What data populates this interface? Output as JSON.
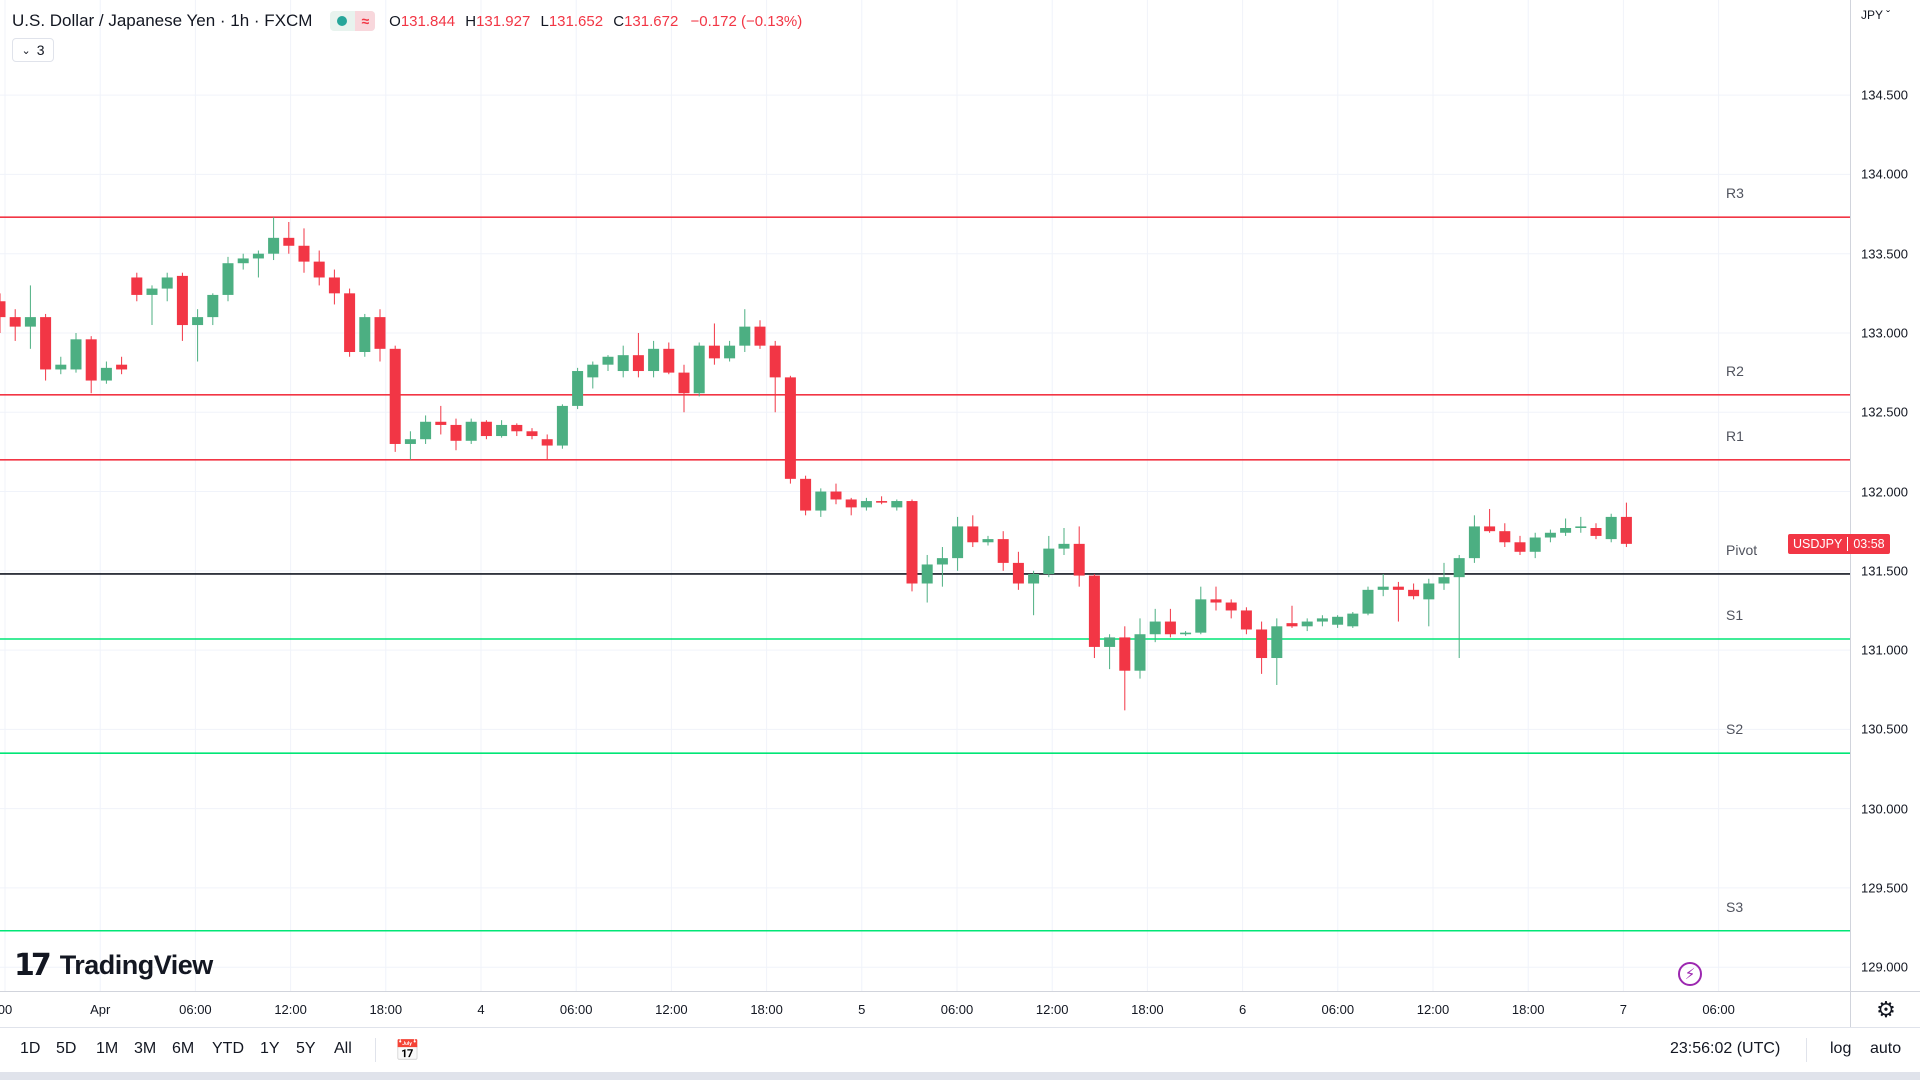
{
  "header": {
    "title": "U.S. Dollar / Japanese Yen · 1h · FXCM",
    "status_icon": "market-open-dot",
    "wave_icon": "≈",
    "ohlc": {
      "o_key": "O",
      "o": "131.844",
      "h_key": "H",
      "h": "131.927",
      "l_key": "L",
      "l": "131.652",
      "c_key": "C",
      "c": "131.672",
      "change": "−0.172 (−0.13%)"
    },
    "indicator_count": "3"
  },
  "price_axis": {
    "currency": "JPY",
    "labels": [
      "134.500",
      "134.000",
      "133.500",
      "133.000",
      "132.500",
      "132.000",
      "131.500",
      "131.000",
      "130.500",
      "130.000",
      "129.500",
      "129.000"
    ],
    "current_symbol": "USDJPY",
    "current_countdown": "03:58",
    "current_price": 131.672
  },
  "levels": [
    {
      "name": "R3",
      "value": 133.73,
      "color": "#f23645"
    },
    {
      "name": "R2",
      "value": 132.61,
      "color": "#f23645"
    },
    {
      "name": "R1",
      "value": 132.2,
      "color": "#f23645"
    },
    {
      "name": "Pivot",
      "value": 131.48,
      "color": "#131722"
    },
    {
      "name": "S1",
      "value": 131.07,
      "color": "#00e676"
    },
    {
      "name": "S2",
      "value": 130.35,
      "color": "#00e676"
    },
    {
      "name": "S3",
      "value": 129.23,
      "color": "#00e676"
    }
  ],
  "time_axis": {
    "labels": [
      "00",
      "Apr",
      "06:00",
      "12:00",
      "18:00",
      "4",
      "06:00",
      "12:00",
      "18:00",
      "5",
      "06:00",
      "12:00",
      "18:00",
      "6",
      "06:00",
      "12:00",
      "18:00",
      "7",
      "06:00"
    ]
  },
  "colors": {
    "up": "#26a69a",
    "up_candle": "#4caf82",
    "down": "#f23645",
    "grid": "#f0f3fa"
  },
  "bottom_bar": {
    "ranges": [
      "1D",
      "5D",
      "1M",
      "3M",
      "6M",
      "YTD",
      "1Y",
      "5Y",
      "All"
    ],
    "clock": "23:56:02 (UTC)",
    "log_label": "log",
    "auto_label": "auto"
  },
  "branding": {
    "logo_text": "TradingView"
  },
  "chart_data": {
    "type": "candlestick",
    "title": "U.S. Dollar / Japanese Yen · 1h · FXCM",
    "interval": "1h",
    "ylim": [
      128.85,
      135.1
    ],
    "candles": [
      {
        "o": 133.2,
        "h": 133.25,
        "l": 133.0,
        "c": 133.1
      },
      {
        "o": 133.1,
        "h": 133.15,
        "l": 132.95,
        "c": 133.04
      },
      {
        "o": 133.04,
        "h": 133.3,
        "l": 132.9,
        "c": 133.1
      },
      {
        "o": 133.1,
        "h": 133.12,
        "l": 132.7,
        "c": 132.77
      },
      {
        "o": 132.77,
        "h": 132.85,
        "l": 132.74,
        "c": 132.8
      },
      {
        "o": 132.77,
        "h": 133.0,
        "l": 132.75,
        "c": 132.96
      },
      {
        "o": 132.96,
        "h": 132.98,
        "l": 132.62,
        "c": 132.7
      },
      {
        "o": 132.7,
        "h": 132.82,
        "l": 132.68,
        "c": 132.78
      },
      {
        "o": 132.8,
        "h": 132.85,
        "l": 132.74,
        "c": 132.77
      },
      {
        "o": 133.35,
        "h": 133.38,
        "l": 133.2,
        "c": 133.24
      },
      {
        "o": 133.24,
        "h": 133.3,
        "l": 133.05,
        "c": 133.28
      },
      {
        "o": 133.28,
        "h": 133.38,
        "l": 133.2,
        "c": 133.35
      },
      {
        "o": 133.36,
        "h": 133.38,
        "l": 132.95,
        "c": 133.05
      },
      {
        "o": 133.05,
        "h": 133.15,
        "l": 132.82,
        "c": 133.1
      },
      {
        "o": 133.1,
        "h": 133.25,
        "l": 133.05,
        "c": 133.24
      },
      {
        "o": 133.24,
        "h": 133.48,
        "l": 133.2,
        "c": 133.44
      },
      {
        "o": 133.44,
        "h": 133.5,
        "l": 133.4,
        "c": 133.47
      },
      {
        "o": 133.47,
        "h": 133.52,
        "l": 133.35,
        "c": 133.5
      },
      {
        "o": 133.5,
        "h": 133.73,
        "l": 133.46,
        "c": 133.6
      },
      {
        "o": 133.6,
        "h": 133.7,
        "l": 133.5,
        "c": 133.55
      },
      {
        "o": 133.55,
        "h": 133.66,
        "l": 133.38,
        "c": 133.45
      },
      {
        "o": 133.45,
        "h": 133.52,
        "l": 133.3,
        "c": 133.35
      },
      {
        "o": 133.35,
        "h": 133.4,
        "l": 133.18,
        "c": 133.25
      },
      {
        "o": 133.25,
        "h": 133.28,
        "l": 132.85,
        "c": 132.88
      },
      {
        "o": 132.88,
        "h": 133.12,
        "l": 132.85,
        "c": 133.1
      },
      {
        "o": 133.1,
        "h": 133.15,
        "l": 132.82,
        "c": 132.9
      },
      {
        "o": 132.9,
        "h": 132.92,
        "l": 132.25,
        "c": 132.3
      },
      {
        "o": 132.3,
        "h": 132.38,
        "l": 132.2,
        "c": 132.33
      },
      {
        "o": 132.33,
        "h": 132.48,
        "l": 132.3,
        "c": 132.44
      },
      {
        "o": 132.44,
        "h": 132.54,
        "l": 132.36,
        "c": 132.42
      },
      {
        "o": 132.42,
        "h": 132.46,
        "l": 132.26,
        "c": 132.32
      },
      {
        "o": 132.32,
        "h": 132.46,
        "l": 132.3,
        "c": 132.44
      },
      {
        "o": 132.44,
        "h": 132.45,
        "l": 132.33,
        "c": 132.35
      },
      {
        "o": 132.35,
        "h": 132.45,
        "l": 132.34,
        "c": 132.42
      },
      {
        "o": 132.42,
        "h": 132.43,
        "l": 132.35,
        "c": 132.38
      },
      {
        "o": 132.38,
        "h": 132.4,
        "l": 132.33,
        "c": 132.35
      },
      {
        "o": 132.33,
        "h": 132.36,
        "l": 132.2,
        "c": 132.29
      },
      {
        "o": 132.29,
        "h": 132.55,
        "l": 132.27,
        "c": 132.54
      },
      {
        "o": 132.54,
        "h": 132.78,
        "l": 132.52,
        "c": 132.76
      },
      {
        "o": 132.72,
        "h": 132.82,
        "l": 132.65,
        "c": 132.8
      },
      {
        "o": 132.8,
        "h": 132.86,
        "l": 132.76,
        "c": 132.85
      },
      {
        "o": 132.76,
        "h": 132.92,
        "l": 132.72,
        "c": 132.86
      },
      {
        "o": 132.86,
        "h": 133.0,
        "l": 132.72,
        "c": 132.76
      },
      {
        "o": 132.76,
        "h": 132.95,
        "l": 132.72,
        "c": 132.9
      },
      {
        "o": 132.9,
        "h": 132.94,
        "l": 132.74,
        "c": 132.75
      },
      {
        "o": 132.75,
        "h": 132.8,
        "l": 132.5,
        "c": 132.62
      },
      {
        "o": 132.62,
        "h": 132.94,
        "l": 132.6,
        "c": 132.92
      },
      {
        "o": 132.92,
        "h": 133.06,
        "l": 132.8,
        "c": 132.84
      },
      {
        "o": 132.84,
        "h": 132.95,
        "l": 132.82,
        "c": 132.92
      },
      {
        "o": 132.92,
        "h": 133.15,
        "l": 132.88,
        "c": 133.04
      },
      {
        "o": 133.04,
        "h": 133.08,
        "l": 132.9,
        "c": 132.92
      },
      {
        "o": 132.92,
        "h": 132.95,
        "l": 132.5,
        "c": 132.72
      },
      {
        "o": 132.72,
        "h": 132.73,
        "l": 132.05,
        "c": 132.08
      },
      {
        "o": 132.08,
        "h": 132.1,
        "l": 131.85,
        "c": 131.88
      },
      {
        "o": 131.88,
        "h": 132.02,
        "l": 131.84,
        "c": 132.0
      },
      {
        "o": 132.0,
        "h": 132.05,
        "l": 131.92,
        "c": 131.95
      },
      {
        "o": 131.95,
        "h": 131.96,
        "l": 131.85,
        "c": 131.9
      },
      {
        "o": 131.9,
        "h": 131.96,
        "l": 131.88,
        "c": 131.94
      },
      {
        "o": 131.94,
        "h": 131.97,
        "l": 131.92,
        "c": 131.93
      },
      {
        "o": 131.9,
        "h": 131.95,
        "l": 131.88,
        "c": 131.94
      },
      {
        "o": 131.94,
        "h": 131.95,
        "l": 131.37,
        "c": 131.42
      },
      {
        "o": 131.42,
        "h": 131.6,
        "l": 131.3,
        "c": 131.54
      },
      {
        "o": 131.54,
        "h": 131.65,
        "l": 131.4,
        "c": 131.58
      },
      {
        "o": 131.58,
        "h": 131.84,
        "l": 131.5,
        "c": 131.78
      },
      {
        "o": 131.78,
        "h": 131.85,
        "l": 131.65,
        "c": 131.68
      },
      {
        "o": 131.68,
        "h": 131.72,
        "l": 131.66,
        "c": 131.7
      },
      {
        "o": 131.7,
        "h": 131.75,
        "l": 131.5,
        "c": 131.55
      },
      {
        "o": 131.55,
        "h": 131.62,
        "l": 131.38,
        "c": 131.42
      },
      {
        "o": 131.42,
        "h": 131.5,
        "l": 131.22,
        "c": 131.48
      },
      {
        "o": 131.48,
        "h": 131.72,
        "l": 131.46,
        "c": 131.64
      },
      {
        "o": 131.64,
        "h": 131.77,
        "l": 131.6,
        "c": 131.67
      },
      {
        "o": 131.67,
        "h": 131.78,
        "l": 131.4,
        "c": 131.47
      },
      {
        "o": 131.47,
        "h": 131.48,
        "l": 130.95,
        "c": 131.02
      },
      {
        "o": 131.02,
        "h": 131.1,
        "l": 130.88,
        "c": 131.08
      },
      {
        "o": 131.08,
        "h": 131.15,
        "l": 130.62,
        "c": 130.87
      },
      {
        "o": 130.87,
        "h": 131.2,
        "l": 130.82,
        "c": 131.1
      },
      {
        "o": 131.1,
        "h": 131.26,
        "l": 131.05,
        "c": 131.18
      },
      {
        "o": 131.18,
        "h": 131.26,
        "l": 131.08,
        "c": 131.1
      },
      {
        "o": 131.1,
        "h": 131.12,
        "l": 131.09,
        "c": 131.11
      },
      {
        "o": 131.11,
        "h": 131.4,
        "l": 131.1,
        "c": 131.32
      },
      {
        "o": 131.32,
        "h": 131.4,
        "l": 131.25,
        "c": 131.3
      },
      {
        "o": 131.3,
        "h": 131.32,
        "l": 131.2,
        "c": 131.25
      },
      {
        "o": 131.25,
        "h": 131.27,
        "l": 131.1,
        "c": 131.13
      },
      {
        "o": 131.13,
        "h": 131.18,
        "l": 130.85,
        "c": 130.95
      },
      {
        "o": 130.95,
        "h": 131.2,
        "l": 130.78,
        "c": 131.15
      },
      {
        "o": 131.17,
        "h": 131.28,
        "l": 131.14,
        "c": 131.15
      },
      {
        "o": 131.15,
        "h": 131.2,
        "l": 131.12,
        "c": 131.18
      },
      {
        "o": 131.18,
        "h": 131.22,
        "l": 131.15,
        "c": 131.2
      },
      {
        "o": 131.16,
        "h": 131.22,
        "l": 131.14,
        "c": 131.21
      },
      {
        "o": 131.15,
        "h": 131.24,
        "l": 131.14,
        "c": 131.23
      },
      {
        "o": 131.23,
        "h": 131.4,
        "l": 131.22,
        "c": 131.38
      },
      {
        "o": 131.38,
        "h": 131.48,
        "l": 131.34,
        "c": 131.4
      },
      {
        "o": 131.4,
        "h": 131.43,
        "l": 131.18,
        "c": 131.38
      },
      {
        "o": 131.38,
        "h": 131.42,
        "l": 131.32,
        "c": 131.34
      },
      {
        "o": 131.32,
        "h": 131.45,
        "l": 131.15,
        "c": 131.42
      },
      {
        "o": 131.42,
        "h": 131.55,
        "l": 131.38,
        "c": 131.46
      },
      {
        "o": 131.46,
        "h": 131.6,
        "l": 130.95,
        "c": 131.58
      },
      {
        "o": 131.58,
        "h": 131.85,
        "l": 131.55,
        "c": 131.78
      },
      {
        "o": 131.78,
        "h": 131.89,
        "l": 131.74,
        "c": 131.75
      },
      {
        "o": 131.75,
        "h": 131.8,
        "l": 131.65,
        "c": 131.68
      },
      {
        "o": 131.68,
        "h": 131.72,
        "l": 131.6,
        "c": 131.62
      },
      {
        "o": 131.62,
        "h": 131.74,
        "l": 131.58,
        "c": 131.71
      },
      {
        "o": 131.71,
        "h": 131.76,
        "l": 131.68,
        "c": 131.74
      },
      {
        "o": 131.74,
        "h": 131.83,
        "l": 131.72,
        "c": 131.77
      },
      {
        "o": 131.77,
        "h": 131.84,
        "l": 131.74,
        "c": 131.78
      },
      {
        "o": 131.77,
        "h": 131.8,
        "l": 131.7,
        "c": 131.72
      },
      {
        "o": 131.7,
        "h": 131.86,
        "l": 131.68,
        "c": 131.84
      },
      {
        "o": 131.84,
        "h": 131.93,
        "l": 131.65,
        "c": 131.67
      }
    ]
  }
}
